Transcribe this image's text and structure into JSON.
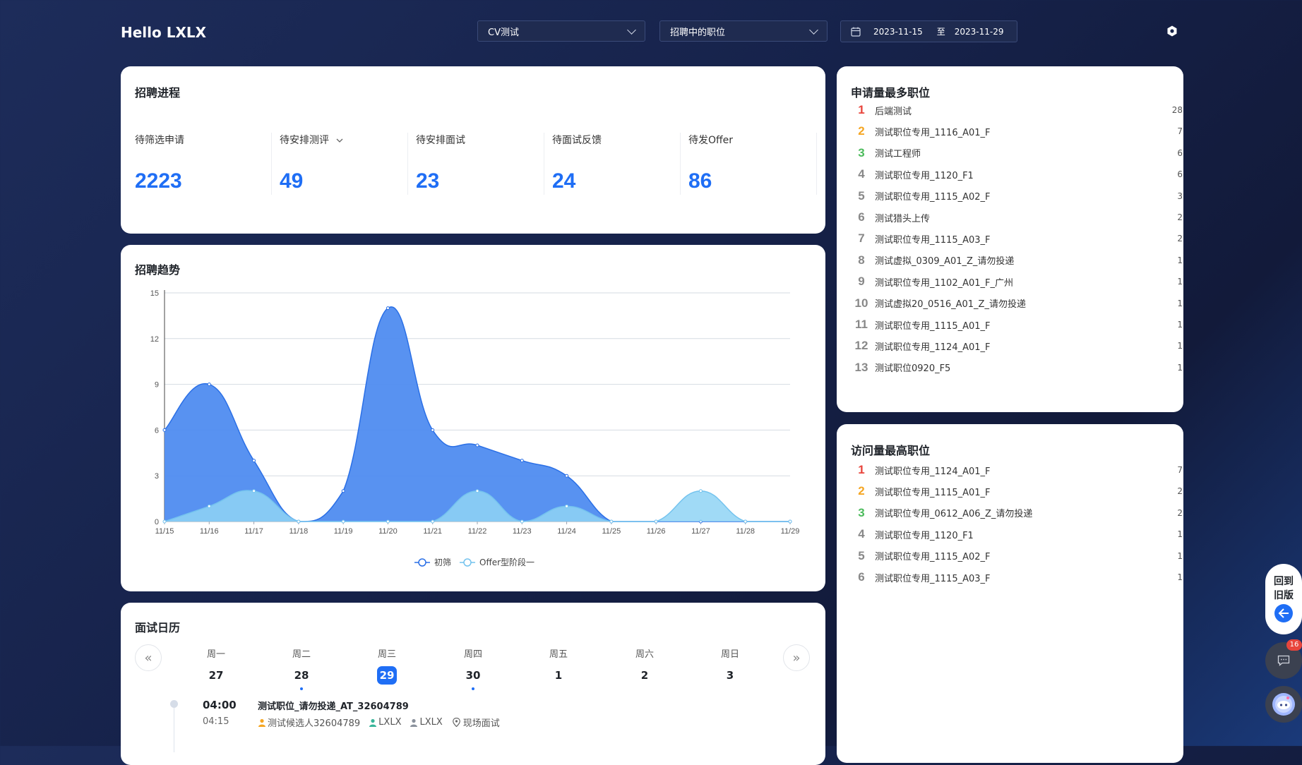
{
  "header": {
    "greeting": "Hello LXLX",
    "filter_cv": "CV测试",
    "filter_status": "招聘中的职位",
    "date_start": "2023-11-15",
    "date_sep": "至",
    "date_end": "2023-11-29"
  },
  "progress": {
    "title": "招聘进程",
    "stats": [
      {
        "label": "待筛选申请",
        "value": "2223"
      },
      {
        "label": "待安排测评",
        "value": "49"
      },
      {
        "label": "待安排面试",
        "value": "23"
      },
      {
        "label": "待面试反馈",
        "value": "24"
      },
      {
        "label": "待发Offer",
        "value": "86"
      }
    ]
  },
  "trend": {
    "title": "招聘趋势",
    "y_ticks": [
      "15",
      "12",
      "9",
      "6",
      "3",
      "0"
    ]
  },
  "chart_data": {
    "type": "area",
    "categories": [
      "11/15",
      "11/16",
      "11/17",
      "11/18",
      "11/19",
      "11/20",
      "11/21",
      "11/22",
      "11/23",
      "11/24",
      "11/25",
      "11/26",
      "11/27",
      "11/28",
      "11/29"
    ],
    "series": [
      {
        "name": "初筛",
        "values": [
          6,
          9,
          4,
          0,
          2,
          14,
          6,
          5,
          4,
          3,
          0,
          0,
          0,
          0,
          0
        ],
        "color": "#3a7ef0"
      },
      {
        "name": "Offer型阶段一",
        "values": [
          0,
          1,
          2,
          0,
          0,
          0,
          0,
          2,
          0,
          1,
          0,
          0,
          2,
          0,
          0
        ],
        "color": "#7cc8f3"
      }
    ],
    "ylim": [
      0,
      15
    ],
    "grid": true,
    "legend_position": "bottom"
  },
  "calendar": {
    "title": "面试日历",
    "prev_icon": "«",
    "next_icon": "»",
    "days": [
      {
        "weekday": "周一",
        "date": "27"
      },
      {
        "weekday": "周二",
        "date": "28"
      },
      {
        "weekday": "周三",
        "date": "29"
      },
      {
        "weekday": "周四",
        "date": "30"
      },
      {
        "weekday": "周五",
        "date": "1"
      },
      {
        "weekday": "周六",
        "date": "2"
      },
      {
        "weekday": "周日",
        "date": "3"
      }
    ],
    "event": {
      "start": "04:00",
      "end": "04:15",
      "title": "测试职位_请勿投递_AT_32604789",
      "candidate": "测试候选人32604789",
      "interviewer1": "LXLX",
      "interviewer2": "LXLX",
      "location": "现场面试"
    }
  },
  "top_applied": {
    "title": "申请量最多职位",
    "items": [
      {
        "rank": "1",
        "name": "后端测试",
        "count": "28"
      },
      {
        "rank": "2",
        "name": "测试职位专用_1116_A01_F",
        "count": "7"
      },
      {
        "rank": "3",
        "name": "测试工程师",
        "count": "6"
      },
      {
        "rank": "4",
        "name": "测试职位专用_1120_F1",
        "count": "6"
      },
      {
        "rank": "5",
        "name": "测试职位专用_1115_A02_F",
        "count": "3"
      },
      {
        "rank": "6",
        "name": "测试猎头上传",
        "count": "2"
      },
      {
        "rank": "7",
        "name": "测试职位专用_1115_A03_F",
        "count": "2"
      },
      {
        "rank": "8",
        "name": "测试虚拟_0309_A01_Z_请勿投递",
        "count": "1"
      },
      {
        "rank": "9",
        "name": "测试职位专用_1102_A01_F_广州",
        "count": "1"
      },
      {
        "rank": "10",
        "name": "测试虚拟20_0516_A01_Z_请勿投递",
        "count": "1"
      },
      {
        "rank": "11",
        "name": "测试职位专用_1115_A01_F",
        "count": "1"
      },
      {
        "rank": "12",
        "name": "测试职位专用_1124_A01_F",
        "count": "1"
      },
      {
        "rank": "13",
        "name": "测试职位0920_F5",
        "count": "1"
      }
    ]
  },
  "top_visited": {
    "title": "访问量最高职位",
    "items": [
      {
        "rank": "1",
        "name": "测试职位专用_1124_A01_F",
        "count": "7"
      },
      {
        "rank": "2",
        "name": "测试职位专用_1115_A01_F",
        "count": "2"
      },
      {
        "rank": "3",
        "name": "测试职位专用_0612_A06_Z_请勿投递",
        "count": "2"
      },
      {
        "rank": "4",
        "name": "测试职位专用_1120_F1",
        "count": "1"
      },
      {
        "rank": "5",
        "name": "测试职位专用_1115_A02_F",
        "count": "1"
      },
      {
        "rank": "6",
        "name": "测试职位专用_1115_A03_F",
        "count": "1"
      }
    ]
  },
  "side": {
    "back_old_line1": "回到",
    "back_old_line2": "旧版",
    "chat_badge": "16"
  },
  "colors": {
    "accent": "#1f6ef5",
    "rank1": "#e8453c",
    "rank2": "#f5a623",
    "rank3": "#4cbb5c",
    "rank_other": "#888888"
  }
}
